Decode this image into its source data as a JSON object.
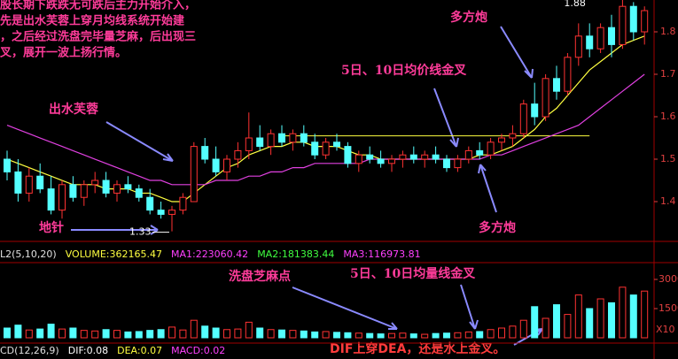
{
  "chart_data": [
    {
      "type": "candlestick",
      "notes": [
        "股长期下跌跌无可跌后主力开始介入，",
        "先是出水芙蓉上穿月均线系统开始建",
        "，之后经过洗盘完毕量芝麻，后出现三",
        "叉，展开一波上扬行情。"
      ],
      "annotations": [
        "多方炮",
        "5日、10日均价线金叉",
        "出水芙蓉",
        "地针",
        "多方炮"
      ],
      "open": [
        1.5,
        1.47,
        1.42,
        1.46,
        1.43,
        1.38,
        1.44,
        1.41,
        1.44,
        1.45,
        1.42,
        1.44,
        1.43,
        1.41,
        1.38,
        1.37,
        1.38,
        1.4,
        1.53,
        1.5,
        1.47,
        1.5,
        1.52,
        1.55,
        1.53,
        1.56,
        1.54,
        1.56,
        1.54,
        1.51,
        1.54,
        1.53,
        1.49,
        1.51,
        1.5,
        1.49,
        1.5,
        1.51,
        1.5,
        1.51,
        1.5,
        1.48,
        1.5,
        1.52,
        1.51,
        1.54,
        1.55,
        1.56,
        1.63,
        1.6,
        1.69,
        1.66,
        1.74,
        1.79,
        1.76,
        1.81,
        1.77,
        1.86,
        1.8
      ],
      "high": [
        1.52,
        1.5,
        1.48,
        1.49,
        1.46,
        1.45,
        1.46,
        1.45,
        1.47,
        1.47,
        1.45,
        1.46,
        1.44,
        1.43,
        1.4,
        1.39,
        1.42,
        1.54,
        1.55,
        1.53,
        1.51,
        1.54,
        1.61,
        1.58,
        1.57,
        1.58,
        1.57,
        1.58,
        1.56,
        1.55,
        1.56,
        1.54,
        1.52,
        1.53,
        1.52,
        1.51,
        1.52,
        1.53,
        1.52,
        1.53,
        1.51,
        1.51,
        1.53,
        1.54,
        1.55,
        1.56,
        1.58,
        1.64,
        1.68,
        1.7,
        1.72,
        1.75,
        1.82,
        1.82,
        1.82,
        1.84,
        1.88,
        1.87,
        1.86
      ],
      "low": [
        1.45,
        1.4,
        1.4,
        1.42,
        1.37,
        1.36,
        1.4,
        1.39,
        1.42,
        1.41,
        1.4,
        1.42,
        1.4,
        1.37,
        1.36,
        1.33,
        1.37,
        1.4,
        1.49,
        1.46,
        1.45,
        1.48,
        1.5,
        1.52,
        1.51,
        1.53,
        1.52,
        1.53,
        1.5,
        1.5,
        1.52,
        1.48,
        1.47,
        1.49,
        1.48,
        1.47,
        1.48,
        1.49,
        1.48,
        1.49,
        1.47,
        1.47,
        1.49,
        1.5,
        1.5,
        1.52,
        1.53,
        1.55,
        1.58,
        1.59,
        1.64,
        1.65,
        1.72,
        1.74,
        1.75,
        1.74,
        1.76,
        1.78,
        1.77
      ],
      "close": [
        1.47,
        1.42,
        1.46,
        1.43,
        1.38,
        1.44,
        1.41,
        1.44,
        1.45,
        1.42,
        1.44,
        1.43,
        1.41,
        1.38,
        1.37,
        1.38,
        1.41,
        1.53,
        1.5,
        1.47,
        1.5,
        1.52,
        1.55,
        1.53,
        1.56,
        1.54,
        1.56,
        1.54,
        1.51,
        1.54,
        1.53,
        1.49,
        1.51,
        1.5,
        1.49,
        1.5,
        1.51,
        1.5,
        1.51,
        1.5,
        1.48,
        1.5,
        1.52,
        1.51,
        1.54,
        1.55,
        1.56,
        1.63,
        1.6,
        1.69,
        1.66,
        1.74,
        1.79,
        1.76,
        1.81,
        1.77,
        1.86,
        1.8,
        1.85
      ],
      "up_color": "#ff3232",
      "down_color": "#54ffff",
      "ma_lines": [
        {
          "color": "#ffff40",
          "values": [
            1.5,
            1.49,
            1.48,
            1.47,
            1.46,
            1.45,
            1.44,
            1.44,
            1.44,
            1.43,
            1.43,
            1.43,
            1.42,
            1.42,
            1.41,
            1.4,
            1.4,
            1.42,
            1.44,
            1.46,
            1.48,
            1.49,
            1.51,
            1.52,
            1.53,
            1.53,
            1.54,
            1.54,
            1.53,
            1.53,
            1.53,
            1.52,
            1.51,
            1.51,
            1.5,
            1.5,
            1.5,
            1.5,
            1.5,
            1.5,
            1.5,
            1.5,
            1.5,
            1.51,
            1.51,
            1.52,
            1.53,
            1.55,
            1.57,
            1.6,
            1.62,
            1.65,
            1.68,
            1.71,
            1.73,
            1.75,
            1.77,
            1.78,
            1.79
          ]
        },
        {
          "color": "#e040e0",
          "values": [
            1.58,
            1.57,
            1.56,
            1.55,
            1.54,
            1.53,
            1.52,
            1.51,
            1.5,
            1.49,
            1.48,
            1.47,
            1.46,
            1.45,
            1.45,
            1.44,
            1.44,
            1.44,
            1.44,
            1.45,
            1.45,
            1.45,
            1.46,
            1.46,
            1.47,
            1.47,
            1.48,
            1.48,
            1.49,
            1.49,
            1.49,
            1.49,
            1.49,
            1.5,
            1.5,
            1.5,
            1.5,
            1.5,
            1.5,
            1.5,
            1.5,
            1.5,
            1.5,
            1.5,
            1.51,
            1.51,
            1.52,
            1.53,
            1.54,
            1.55,
            1.56,
            1.57,
            1.58,
            1.6,
            1.62,
            1.64,
            1.66,
            1.68,
            1.7
          ]
        }
      ],
      "hline": 1.555,
      "low_label": {
        "index": 15,
        "label": "1.33"
      },
      "high_label": {
        "index": 56,
        "label": "1.88"
      },
      "ylim": [
        1.3167,
        1.875
      ],
      "yticks": [
        1.4,
        1.5,
        1.6,
        1.7,
        1.8
      ]
    },
    {
      "type": "bar",
      "info": [
        "L2(5,10,20)",
        "VOLUME:362165.47",
        "MA1:223060.42",
        "MA2:181383.44",
        "MA3:116973.81"
      ],
      "annotations": [
        "洗盘芝麻点",
        "5日、10日均量线金叉",
        "DIF上穿DEA，还是水上金叉。"
      ],
      "macd_info": [
        "CD(12,26,9)",
        "DIF:0.08",
        "DEA:0.07",
        "MACD:0.02"
      ],
      "unit_label": "X10",
      "values": [
        500,
        650,
        400,
        450,
        700,
        450,
        500,
        380,
        350,
        420,
        380,
        300,
        320,
        380,
        420,
        550,
        400,
        900,
        600,
        500,
        420,
        450,
        800,
        500,
        420,
        400,
        380,
        350,
        300,
        320,
        280,
        260,
        240,
        220,
        200,
        220,
        240,
        200,
        180,
        220,
        240,
        260,
        300,
        320,
        420,
        500,
        600,
        900,
        1600,
        1000,
        1700,
        1200,
        2200,
        1500,
        2000,
        1800,
        2600,
        2200,
        2400
      ],
      "ylim": [
        0,
        3727
      ],
      "yticks": [
        1500,
        3000
      ]
    }
  ]
}
